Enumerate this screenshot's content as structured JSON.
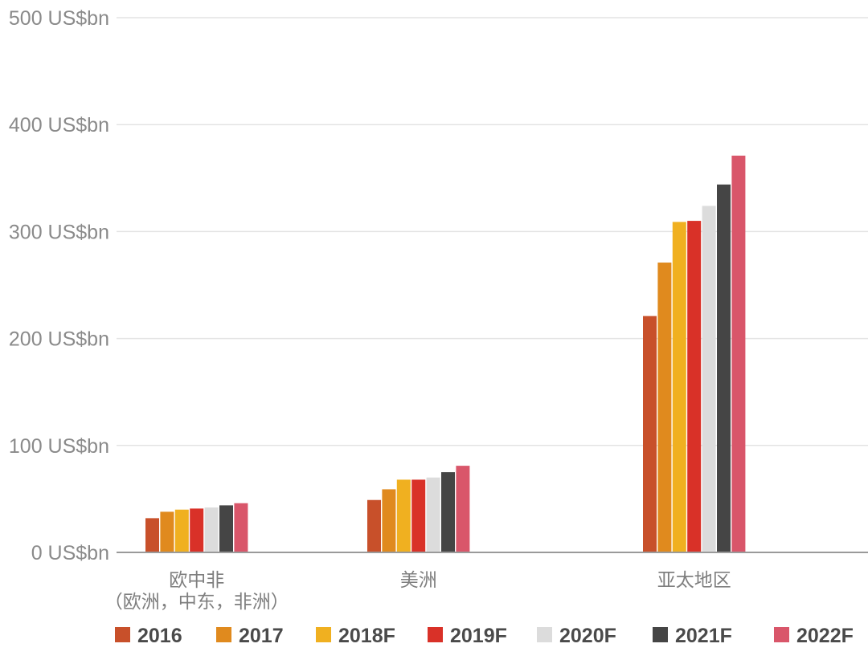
{
  "chart_data": {
    "type": "bar",
    "ylim": [
      0,
      500
    ],
    "yticks": [
      0,
      100,
      200,
      300,
      400,
      500
    ],
    "ytick_labels": [
      "0 US$bn",
      "100 US$bn",
      "200 US$bn",
      "300 US$bn",
      "400 US$bn",
      "500 US$bn"
    ],
    "categories": [
      {
        "label": "欧中非",
        "sublabel": "（欧洲，中东，非洲）"
      },
      {
        "label": "美洲",
        "sublabel": ""
      },
      {
        "label": "亚太地区",
        "sublabel": ""
      }
    ],
    "series": [
      {
        "name": "2016",
        "color": "#c8502a",
        "values": [
          32,
          49,
          221
        ]
      },
      {
        "name": "2017",
        "color": "#e08a1e",
        "values": [
          38,
          59,
          271
        ]
      },
      {
        "name": "2018F",
        "color": "#f0b020",
        "values": [
          40,
          68,
          309
        ]
      },
      {
        "name": "2019F",
        "color": "#d93128",
        "values": [
          41,
          68,
          310
        ]
      },
      {
        "name": "2020F",
        "color": "#dcdcdc",
        "values": [
          42,
          70,
          324
        ]
      },
      {
        "name": "2021F",
        "color": "#454545",
        "values": [
          44,
          75,
          344
        ]
      },
      {
        "name": "2022F",
        "color": "#d9566a",
        "values": [
          46,
          81,
          371
        ]
      }
    ],
    "legend_position": "bottom"
  }
}
